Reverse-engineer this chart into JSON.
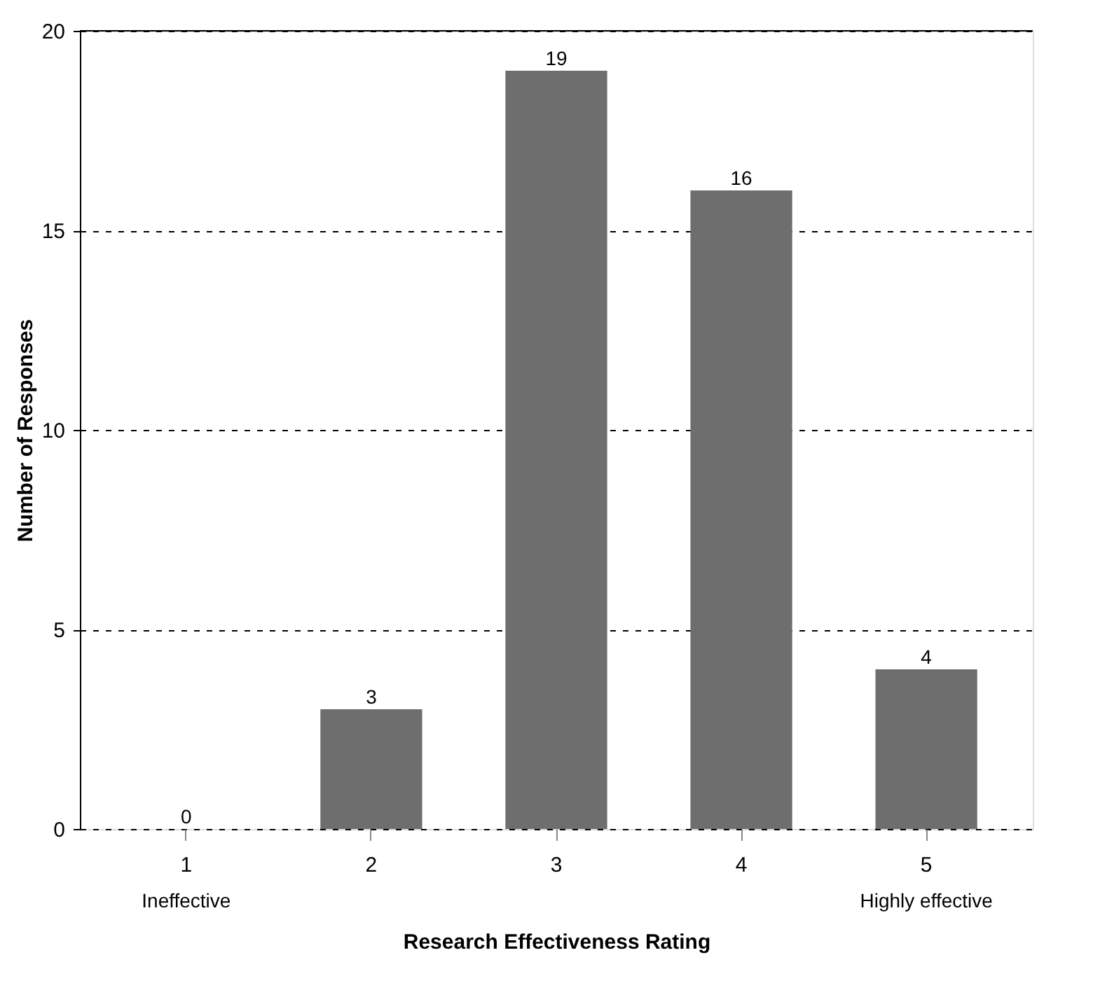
{
  "chart_data": {
    "type": "bar",
    "xlabel": "Research Effectiveness Rating",
    "ylabel": "Number of Responses",
    "categories": [
      "1",
      "2",
      "3",
      "4",
      "5"
    ],
    "values": [
      0,
      3,
      19,
      16,
      4
    ],
    "color": "#6e6e6e",
    "ylim": [
      0,
      20
    ],
    "yticks": [
      0,
      5,
      10,
      15,
      20
    ],
    "grid": "y",
    "data_labels": true,
    "annotations": [
      "Ineffective",
      "Highly effective"
    ]
  }
}
